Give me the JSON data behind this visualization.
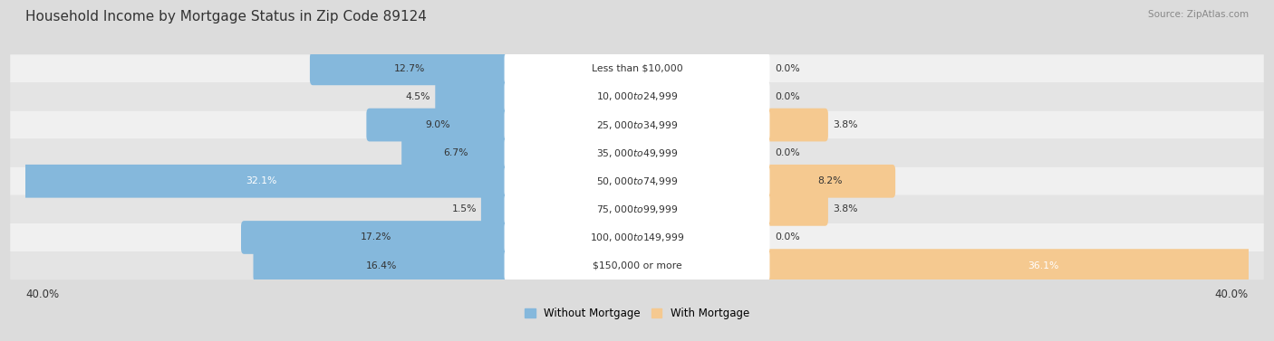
{
  "title": "Household Income by Mortgage Status in Zip Code 89124",
  "source": "Source: ZipAtlas.com",
  "categories": [
    "Less than $10,000",
    "$10,000 to $24,999",
    "$25,000 to $34,999",
    "$35,000 to $49,999",
    "$50,000 to $74,999",
    "$75,000 to $99,999",
    "$100,000 to $149,999",
    "$150,000 or more"
  ],
  "without_mortgage": [
    12.7,
    4.5,
    9.0,
    6.7,
    32.1,
    1.5,
    17.2,
    16.4
  ],
  "with_mortgage": [
    0.0,
    0.0,
    3.8,
    0.0,
    8.2,
    3.8,
    0.0,
    36.1
  ],
  "color_without": "#85B8DC",
  "color_with": "#F5C990",
  "axis_limit": 40.0,
  "row_colors": [
    "#f0f0f0",
    "#e4e4e4"
  ],
  "label_bg": "#ffffff"
}
